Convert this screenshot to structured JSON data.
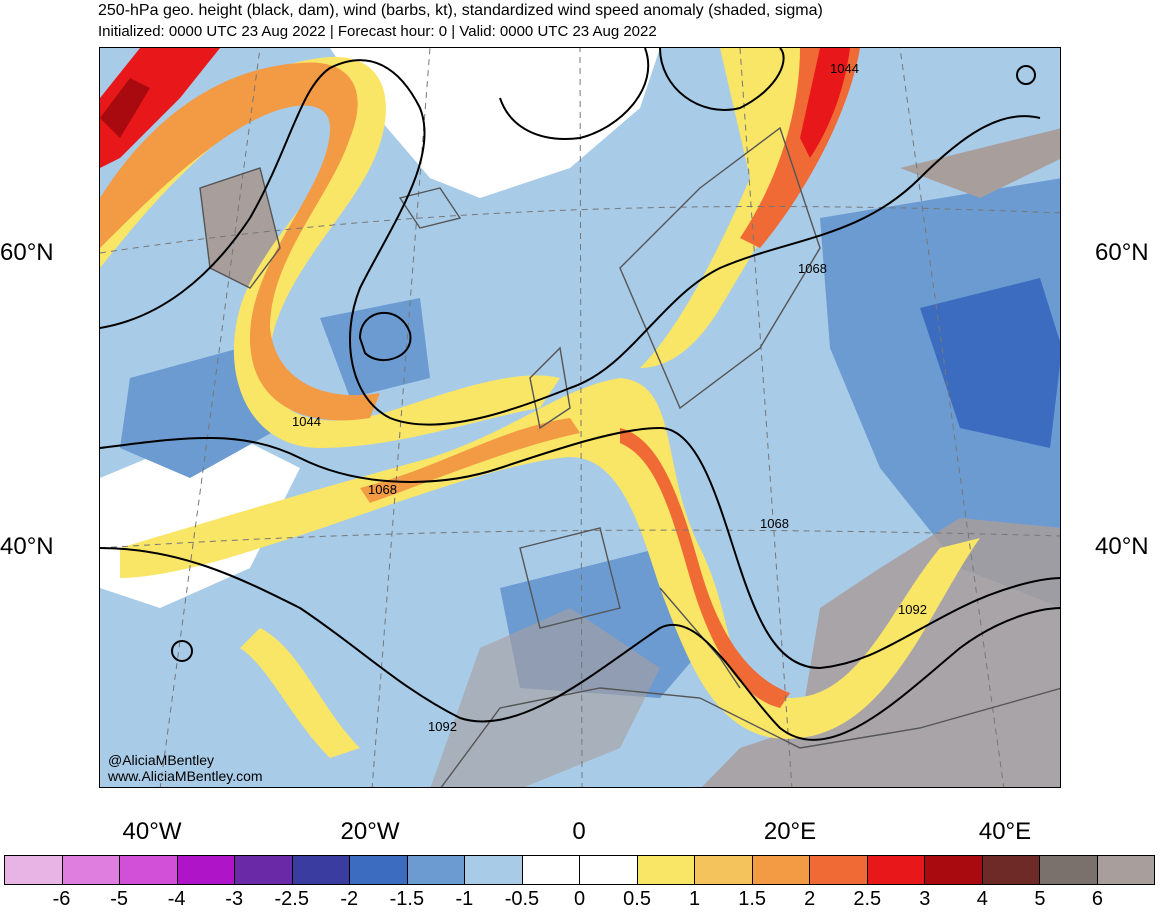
{
  "title": "250-hPa geo. height (black, dam), wind (barbs, kt), standardized wind speed anomaly (shaded, sigma)",
  "subtitle": "Initialized: 0000 UTC 23 Aug 2022 | Forecast hour: 0 | Valid: 0000 UTC 23 Aug 2022",
  "lat_labels": [
    "60°N",
    "40°N"
  ],
  "lon_labels": [
    "40°W",
    "20°W",
    "0",
    "20°E",
    "40°E"
  ],
  "contour_labels": [
    "1044",
    "1044",
    "1068",
    "1068",
    "1068",
    "1092",
    "1092"
  ],
  "credits": [
    "@AliciaMBentley",
    "www.AliciaMBentley.com"
  ],
  "colorbar": {
    "colors": [
      "#e8b4e6",
      "#e07ee0",
      "#d24fd8",
      "#b014c8",
      "#6a2aa8",
      "#3a3ca0",
      "#3c6cc0",
      "#6c9bd2",
      "#a8cbe8",
      "#ffffff",
      "#ffffff",
      "#f9e566",
      "#f5c35c",
      "#f39a45",
      "#f06a35",
      "#e8181a",
      "#a80a10",
      "#6e2a26",
      "#7a716d",
      "#a89e9c"
    ],
    "labels": [
      "-6",
      "-5",
      "-4",
      "-3",
      "-2.5",
      "-2",
      "-1.5",
      "-1",
      "-0.5",
      "0",
      "0.5",
      "1",
      "1.5",
      "2",
      "2.5",
      "3",
      "4",
      "5",
      "6"
    ]
  }
}
